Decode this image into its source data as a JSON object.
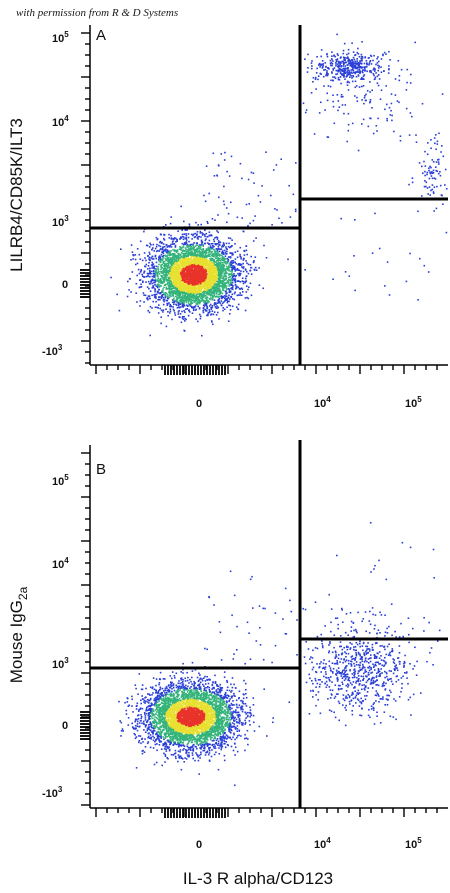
{
  "watermark": "with permission from R & D Systems",
  "colors": {
    "low": "#2a3fd6",
    "mid": "#33b37a",
    "high": "#e8e030",
    "peak": "#e8332a",
    "gate": "#000000"
  },
  "x_axis_title": "IL-3 R alpha/CD123",
  "chart_data": [
    {
      "type": "scatter",
      "panel": "A",
      "ylabel": "LILRB4/CD85K/ILT3",
      "xlabel": "IL-3 R alpha/CD123",
      "scale": "biexponential",
      "x_ticks": [
        "0",
        "10^4",
        "10^5"
      ],
      "y_ticks": [
        "10^5",
        "10^4",
        "10^3",
        "0",
        "-10^3"
      ],
      "gates": {
        "x_split": 6000,
        "y_left": 800,
        "y_right": 1600
      },
      "populations": [
        {
          "name": "CD123-negative",
          "center": [
            0,
            50
          ],
          "density": "high"
        },
        {
          "name": "CD123+ ILT3+",
          "center": [
            20000,
            40000
          ],
          "density": "medium"
        }
      ]
    },
    {
      "type": "scatter",
      "panel": "B",
      "ylabel": "Mouse IgG2a",
      "xlabel": "IL-3 R alpha/CD123",
      "scale": "biexponential",
      "x_ticks": [
        "0",
        "10^4",
        "10^5"
      ],
      "y_ticks": [
        "10^5",
        "10^4",
        "10^3",
        "0",
        "-10^3"
      ],
      "gates": {
        "x_split": 6000,
        "y_left": 800,
        "y_right": 1600
      },
      "populations": [
        {
          "name": "CD123-negative",
          "center": [
            0,
            50
          ],
          "density": "high"
        },
        {
          "name": "CD123+ isotype",
          "center": [
            25000,
            600
          ],
          "density": "medium"
        }
      ]
    }
  ],
  "panels": [
    {
      "letter": "A",
      "ylabel": "LILRB4/CD85K/ILT3",
      "yticks": {
        "t5": "10",
        "t4": "10",
        "t3": "10",
        "zero": "0",
        "neg": "-10",
        "e5": "5",
        "e4": "4",
        "e3": "3",
        "eneg": "3"
      },
      "xticks": {
        "zero": "0",
        "t4": "10",
        "t5": "10",
        "e4": "4",
        "e5": "5"
      }
    },
    {
      "letter": "B",
      "ylabel_main": "Mouse IgG",
      "ylabel_sub": "2a",
      "yticks": {
        "t5": "10",
        "t4": "10",
        "t3": "10",
        "zero": "0",
        "neg": "-10",
        "e5": "5",
        "e4": "4",
        "e3": "3",
        "eneg": "3"
      },
      "xticks": {
        "zero": "0",
        "t4": "10",
        "t5": "10",
        "e4": "4",
        "e5": "5"
      }
    }
  ]
}
